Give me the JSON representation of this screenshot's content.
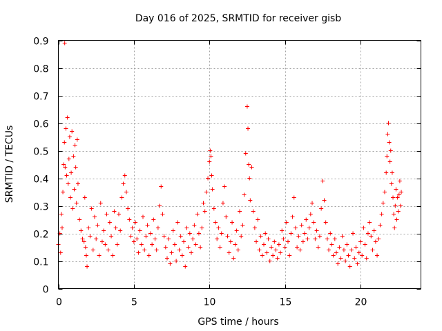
{
  "chart_data": {
    "type": "scatter",
    "title": "Day 016 of 2025, SRMTID for receiver gisb",
    "xlabel": "GPS time / hours",
    "ylabel": "SRMTID / TECUs",
    "xlim": [
      0,
      24
    ],
    "ylim": [
      0,
      0.9
    ],
    "xticks": [
      0,
      5,
      10,
      15,
      20
    ],
    "xtick_labels": [
      "0",
      "5",
      "10",
      "15",
      "20"
    ],
    "yticks": [
      0,
      0.1,
      0.2,
      0.3,
      0.4,
      0.5,
      0.6,
      0.7,
      0.8,
      0.9
    ],
    "ytick_labels": [
      "0",
      "0.1",
      "0.2",
      "0.3",
      "0.4",
      "0.5",
      "0.6",
      "0.7",
      "0.8",
      "0.9"
    ],
    "grid": true,
    "marker": "+",
    "marker_color": "#ff0000",
    "data_coverage": [
      0,
      22.7
    ],
    "series": [
      {
        "name": "SRMTID",
        "x": [
          0.0,
          0.1,
          0.15,
          0.2,
          0.25,
          0.3,
          0.35,
          0.4,
          0.42,
          0.45,
          0.5,
          0.55,
          0.6,
          0.65,
          0.7,
          0.75,
          0.8,
          0.85,
          0.9,
          0.95,
          1.0,
          1.05,
          1.1,
          1.15,
          1.2,
          1.25,
          1.3,
          1.4,
          1.5,
          1.6,
          1.7,
          1.75,
          1.8,
          1.85,
          1.9,
          2.0,
          2.1,
          2.2,
          2.3,
          2.4,
          2.5,
          2.6,
          2.7,
          2.8,
          2.9,
          3.0,
          3.1,
          3.2,
          3.3,
          3.4,
          3.5,
          3.6,
          3.7,
          3.8,
          3.9,
          4.0,
          4.1,
          4.2,
          4.3,
          4.4,
          4.5,
          4.6,
          4.7,
          4.8,
          4.9,
          5.0,
          5.1,
          5.2,
          5.3,
          5.4,
          5.5,
          5.6,
          5.7,
          5.8,
          5.9,
          6.0,
          6.1,
          6.2,
          6.3,
          6.4,
          6.5,
          6.6,
          6.7,
          6.8,
          6.9,
          7.0,
          7.1,
          7.2,
          7.3,
          7.4,
          7.5,
          7.6,
          7.7,
          7.8,
          7.9,
          8.0,
          8.1,
          8.2,
          8.3,
          8.4,
          8.5,
          8.6,
          8.7,
          8.8,
          8.9,
          9.0,
          9.1,
          9.2,
          9.3,
          9.4,
          9.5,
          9.6,
          9.7,
          9.8,
          9.9,
          10.0,
          10.05,
          10.1,
          10.15,
          10.2,
          10.3,
          10.4,
          10.5,
          10.6,
          10.7,
          10.8,
          10.9,
          11.0,
          11.1,
          11.2,
          11.3,
          11.4,
          11.5,
          11.6,
          11.7,
          11.8,
          11.9,
          12.0,
          12.1,
          12.2,
          12.3,
          12.4,
          12.5,
          12.55,
          12.6,
          12.65,
          12.7,
          12.8,
          12.9,
          13.0,
          13.1,
          13.2,
          13.3,
          13.4,
          13.5,
          13.6,
          13.7,
          13.8,
          13.9,
          14.0,
          14.1,
          14.2,
          14.3,
          14.4,
          14.5,
          14.6,
          14.7,
          14.8,
          14.9,
          15.0,
          15.1,
          15.2,
          15.3,
          15.4,
          15.5,
          15.6,
          15.7,
          15.8,
          15.9,
          16.0,
          16.1,
          16.2,
          16.3,
          16.4,
          16.5,
          16.6,
          16.7,
          16.8,
          16.9,
          17.0,
          17.1,
          17.2,
          17.3,
          17.4,
          17.5,
          17.6,
          17.7,
          17.8,
          17.9,
          18.0,
          18.1,
          18.2,
          18.3,
          18.4,
          18.5,
          18.6,
          18.7,
          18.8,
          18.9,
          19.0,
          19.1,
          19.2,
          19.3,
          19.4,
          19.5,
          19.6,
          19.7,
          19.8,
          19.9,
          20.0,
          20.1,
          20.2,
          20.3,
          20.4,
          20.5,
          20.6,
          20.7,
          20.8,
          20.9,
          21.0,
          21.1,
          21.2,
          21.3,
          21.4,
          21.5,
          21.6,
          21.7,
          21.75,
          21.8,
          21.85,
          21.9,
          21.95,
          22.0,
          22.05,
          22.1,
          22.15,
          22.2,
          22.25,
          22.3,
          22.35,
          22.4,
          22.45,
          22.5,
          22.55,
          22.6,
          22.65,
          22.7
        ],
        "y": [
          0.16,
          0.2,
          0.13,
          0.27,
          0.22,
          0.35,
          0.45,
          0.53,
          0.89,
          0.44,
          0.58,
          0.41,
          0.62,
          0.38,
          0.47,
          0.55,
          0.33,
          0.42,
          0.57,
          0.29,
          0.48,
          0.36,
          0.52,
          0.44,
          0.31,
          0.54,
          0.38,
          0.25,
          0.21,
          0.18,
          0.17,
          0.33,
          0.15,
          0.12,
          0.08,
          0.22,
          0.19,
          0.29,
          0.14,
          0.26,
          0.18,
          0.23,
          0.12,
          0.31,
          0.17,
          0.21,
          0.16,
          0.27,
          0.14,
          0.24,
          0.19,
          0.12,
          0.28,
          0.22,
          0.16,
          0.27,
          0.21,
          0.33,
          0.38,
          0.41,
          0.35,
          0.29,
          0.25,
          0.19,
          0.22,
          0.17,
          0.24,
          0.18,
          0.13,
          0.21,
          0.16,
          0.26,
          0.14,
          0.19,
          0.23,
          0.12,
          0.2,
          0.16,
          0.25,
          0.18,
          0.14,
          0.22,
          0.3,
          0.37,
          0.27,
          0.19,
          0.15,
          0.11,
          0.18,
          0.09,
          0.13,
          0.21,
          0.16,
          0.1,
          0.24,
          0.14,
          0.19,
          0.12,
          0.17,
          0.08,
          0.22,
          0.15,
          0.2,
          0.13,
          0.18,
          0.23,
          0.16,
          0.27,
          0.2,
          0.15,
          0.22,
          0.31,
          0.28,
          0.35,
          0.4,
          0.46,
          0.5,
          0.48,
          0.41,
          0.36,
          0.29,
          0.24,
          0.18,
          0.22,
          0.15,
          0.2,
          0.31,
          0.37,
          0.26,
          0.19,
          0.13,
          0.17,
          0.24,
          0.11,
          0.16,
          0.21,
          0.14,
          0.28,
          0.19,
          0.23,
          0.34,
          0.49,
          0.66,
          0.58,
          0.45,
          0.4,
          0.32,
          0.44,
          0.28,
          0.22,
          0.17,
          0.25,
          0.14,
          0.19,
          0.12,
          0.16,
          0.2,
          0.13,
          0.18,
          0.1,
          0.15,
          0.12,
          0.17,
          0.14,
          0.11,
          0.16,
          0.13,
          0.21,
          0.18,
          0.15,
          0.24,
          0.17,
          0.12,
          0.2,
          0.26,
          0.33,
          0.22,
          0.15,
          0.19,
          0.14,
          0.23,
          0.17,
          0.2,
          0.25,
          0.18,
          0.22,
          0.27,
          0.31,
          0.24,
          0.18,
          0.21,
          0.15,
          0.19,
          0.29,
          0.39,
          0.32,
          0.24,
          0.18,
          0.14,
          0.2,
          0.16,
          0.12,
          0.18,
          0.13,
          0.09,
          0.15,
          0.11,
          0.19,
          0.14,
          0.1,
          0.16,
          0.12,
          0.08,
          0.14,
          0.2,
          0.11,
          0.15,
          0.09,
          0.13,
          0.17,
          0.12,
          0.22,
          0.16,
          0.11,
          0.2,
          0.24,
          0.19,
          0.14,
          0.21,
          0.17,
          0.12,
          0.18,
          0.23,
          0.27,
          0.31,
          0.35,
          0.42,
          0.48,
          0.56,
          0.6,
          0.53,
          0.46,
          0.5,
          0.38,
          0.42,
          0.33,
          0.27,
          0.22,
          0.3,
          0.36,
          0.25,
          0.33,
          0.28,
          0.34,
          0.39,
          0.3,
          0.35
        ]
      }
    ]
  }
}
